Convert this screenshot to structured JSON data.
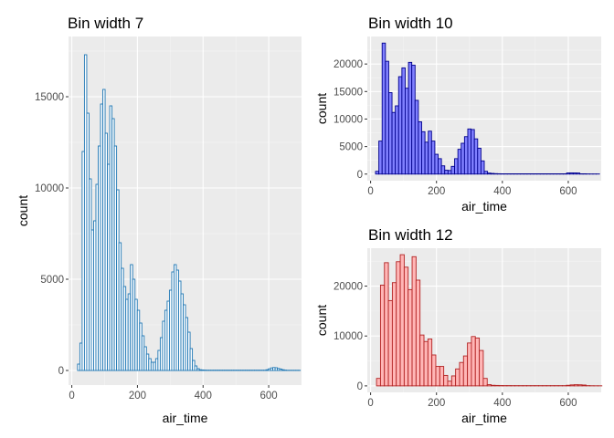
{
  "chart_data": [
    {
      "type": "histogram",
      "title": "Bin width 7",
      "xlabel": "air_time",
      "ylabel": "count",
      "binwidth": 7,
      "fill": "#ffffff",
      "outline": "#1f77b4",
      "xlim": [
        -10,
        700
      ],
      "ylim": [
        -800,
        18300
      ],
      "xticks": [
        0,
        200,
        400,
        600
      ],
      "xtick_labels": [
        "0",
        "200",
        "400",
        "600"
      ],
      "yticks": [
        0,
        5000,
        10000,
        15000
      ],
      "ytick_labels": [
        "0",
        "5000",
        "10000",
        "15000"
      ],
      "grid": true,
      "bin_centers": [
        21,
        28,
        35,
        42,
        49,
        56,
        63,
        70,
        77,
        84,
        91,
        98,
        105,
        112,
        119,
        126,
        133,
        140,
        147,
        154,
        161,
        168,
        175,
        182,
        189,
        196,
        203,
        210,
        217,
        224,
        231,
        238,
        245,
        252,
        259,
        266,
        273,
        280,
        287,
        294,
        301,
        308,
        315,
        322,
        329,
        336,
        343,
        350,
        357,
        364,
        371,
        378,
        385,
        392,
        399,
        406,
        413,
        420,
        427,
        434,
        441,
        448,
        455,
        462,
        469,
        476,
        483,
        490,
        497,
        504,
        511,
        518,
        525,
        532,
        539,
        546,
        553,
        560,
        567,
        574,
        581,
        588,
        595,
        602,
        609,
        616,
        623,
        630,
        637,
        644,
        651,
        658,
        665,
        672,
        679,
        686,
        693
      ],
      "counts": [
        350,
        1500,
        12000,
        17300,
        14100,
        10500,
        7700,
        8200,
        10200,
        12300,
        14600,
        15400,
        13000,
        11300,
        14500,
        13800,
        12300,
        9900,
        7000,
        5600,
        4600,
        3900,
        4200,
        5800,
        5000,
        3900,
        3300,
        2600,
        1900,
        1300,
        900,
        650,
        450,
        450,
        650,
        1100,
        1800,
        2700,
        3300,
        3800,
        4400,
        5400,
        5800,
        5500,
        4900,
        4200,
        3600,
        2900,
        2100,
        1200,
        550,
        250,
        100,
        40,
        30,
        20,
        15,
        15,
        15,
        15,
        15,
        15,
        15,
        15,
        15,
        15,
        15,
        15,
        15,
        15,
        15,
        15,
        15,
        15,
        15,
        15,
        15,
        15,
        15,
        15,
        15,
        15,
        40,
        90,
        140,
        160,
        150,
        110,
        80,
        40,
        20,
        10,
        10,
        10,
        10,
        10,
        10
      ]
    },
    {
      "type": "histogram",
      "title": "Bin width 10",
      "xlabel": "air_time",
      "ylabel": "count",
      "binwidth": 10,
      "fill": "#8080ff",
      "outline": "#00008b",
      "xlim": [
        -10,
        700
      ],
      "ylim": [
        -1200,
        25000
      ],
      "xticks": [
        0,
        200,
        400,
        600
      ],
      "xtick_labels": [
        "0",
        "200",
        "400",
        "600"
      ],
      "yticks": [
        0,
        5000,
        10000,
        15000,
        20000
      ],
      "ytick_labels": [
        "0",
        "5000",
        "10000",
        "15000",
        "20000"
      ],
      "grid": true,
      "bin_centers": [
        20,
        30,
        40,
        50,
        60,
        70,
        80,
        90,
        100,
        110,
        120,
        130,
        140,
        150,
        160,
        170,
        180,
        190,
        200,
        210,
        220,
        230,
        240,
        250,
        260,
        270,
        280,
        290,
        300,
        310,
        320,
        330,
        340,
        350,
        360,
        370,
        380,
        390,
        400,
        410,
        420,
        430,
        440,
        450,
        460,
        470,
        480,
        490,
        500,
        510,
        520,
        530,
        540,
        550,
        560,
        570,
        580,
        590,
        600,
        610,
        620,
        630,
        640,
        650,
        660,
        670,
        680,
        690
      ],
      "counts": [
        500,
        6000,
        23800,
        20500,
        14800,
        11200,
        12400,
        17700,
        19300,
        15600,
        20300,
        19800,
        13400,
        9500,
        7700,
        5800,
        7800,
        6000,
        3600,
        2800,
        1500,
        700,
        650,
        1400,
        2800,
        4500,
        5600,
        6800,
        8200,
        8100,
        6400,
        4700,
        2400,
        500,
        180,
        120,
        80,
        60,
        50,
        50,
        50,
        50,
        50,
        50,
        50,
        50,
        50,
        50,
        50,
        50,
        50,
        50,
        50,
        50,
        50,
        50,
        50,
        50,
        200,
        220,
        210,
        190,
        50,
        50,
        30,
        20,
        20,
        20
      ]
    },
    {
      "type": "histogram",
      "title": "Bin width 12",
      "xlabel": "air_time",
      "ylabel": "count",
      "binwidth": 12,
      "fill": "#ffb6b6",
      "outline": "#b22222",
      "xlim": [
        -10,
        700
      ],
      "ylim": [
        -1300,
        27600
      ],
      "xticks": [
        0,
        200,
        400,
        600
      ],
      "xtick_labels": [
        "0",
        "200",
        "400",
        "600"
      ],
      "yticks": [
        0,
        10000,
        20000
      ],
      "ytick_labels": [
        "0",
        "10000",
        "20000"
      ],
      "grid": true,
      "bin_centers": [
        24,
        36,
        48,
        60,
        72,
        84,
        96,
        108,
        120,
        132,
        144,
        156,
        168,
        180,
        192,
        204,
        216,
        228,
        240,
        252,
        264,
        276,
        288,
        300,
        312,
        324,
        336,
        348,
        360,
        372,
        384,
        396,
        408,
        420,
        432,
        444,
        456,
        468,
        480,
        492,
        504,
        516,
        528,
        540,
        552,
        564,
        576,
        588,
        600,
        612,
        624,
        636,
        648,
        660,
        672,
        684,
        696
      ],
      "counts": [
        1500,
        20200,
        24700,
        17100,
        20700,
        24900,
        26300,
        23800,
        19300,
        25900,
        21200,
        10200,
        8900,
        9400,
        6200,
        3900,
        3900,
        2100,
        950,
        2000,
        3400,
        4700,
        6000,
        8600,
        9900,
        9600,
        7100,
        1500,
        250,
        120,
        90,
        70,
        60,
        60,
        50,
        50,
        50,
        50,
        50,
        50,
        50,
        50,
        50,
        50,
        50,
        50,
        50,
        50,
        120,
        200,
        240,
        220,
        170,
        50,
        30,
        20,
        20
      ]
    }
  ]
}
